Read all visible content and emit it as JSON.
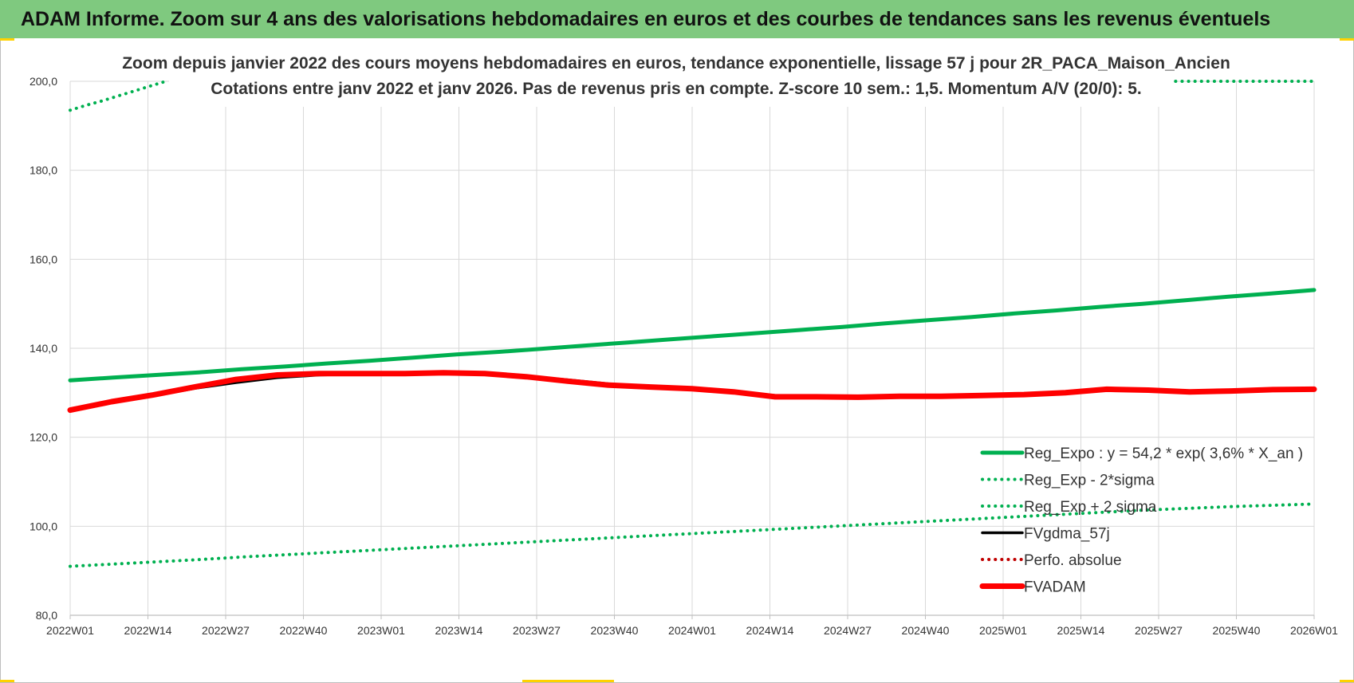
{
  "banner": {
    "title": "ADAM Informe. Zoom sur 4 ans des valorisations hebdomadaires en euros et des courbes de tendances sans les revenus éventuels"
  },
  "colors": {
    "banner_bg": "#7fc97f",
    "trend_green": "#00b050",
    "fvadam_red": "#ff0000",
    "fvgdma_black": "#000000",
    "grid": "#d9d9d9"
  },
  "chart_data": {
    "type": "line",
    "title": "Zoom depuis janvier 2022 des cours moyens hebdomadaires en euros, tendance exponentielle, lissage 57 j pour 2R_PACA_Maison_Ancien",
    "subtitle": "Cotations entre janv 2022 et janv 2026. Pas de revenus pris en compte. Z-score 10 sem.: 1,5. Momentum A/V (20/0): 5.",
    "xlabel": "",
    "ylabel": "",
    "ylim": [
      80,
      200
    ],
    "yticks": [
      "80,0",
      "100,0",
      "120,0",
      "140,0",
      "160,0",
      "180,0",
      "200,0"
    ],
    "xticks": [
      "2022W01",
      "2022W14",
      "2022W27",
      "2022W40",
      "2023W01",
      "2023W14",
      "2023W27",
      "2023W40",
      "2024W01",
      "2024W14",
      "2024W27",
      "2024W40",
      "2025W01",
      "2025W14",
      "2025W27",
      "2025W40",
      "2026W01"
    ],
    "grid": true,
    "legend_position": "bottom-right",
    "series": [
      {
        "name": "Reg_Expo : y = 54,2 * exp( 3,6% *  X_an )",
        "style": "solid",
        "color": "#00b050",
        "values": [
          132.8,
          133.4,
          134.0,
          134.6,
          135.3,
          135.9,
          136.6,
          137.2,
          137.9,
          138.6,
          139.2,
          139.9,
          140.6,
          141.3,
          142.0,
          142.7,
          143.4,
          144.1,
          144.8,
          145.6,
          146.3,
          147.0,
          147.8,
          148.5,
          149.3,
          150.0,
          150.8,
          151.6,
          152.3,
          153.1
        ]
      },
      {
        "name": "Reg_Exp - 2*sigma",
        "style": "dotted",
        "color": "#00b050",
        "values": [
          91.0,
          91.5,
          92.0,
          92.5,
          93.1,
          93.6,
          94.1,
          94.6,
          95.1,
          95.6,
          96.1,
          96.6,
          97.1,
          97.6,
          98.1,
          98.6,
          99.1,
          99.6,
          100.1,
          100.6,
          101.1,
          101.6,
          102.1,
          102.6,
          103.1,
          103.6,
          104.0,
          104.4,
          104.7,
          105.0
        ]
      },
      {
        "name": "Reg_Exp + 2 sigma",
        "style": "dotted",
        "color": "#00b050",
        "values": [
          193.5,
          194.6,
          195.6,
          196.7,
          197.8,
          198.9,
          200.0
        ]
      },
      {
        "name": "FVgdma_57j",
        "style": "solid-thin",
        "color": "#000000",
        "values": [
          126.0,
          127.8,
          129.3,
          131.0,
          132.3,
          133.4,
          134.0,
          134.2,
          134.3,
          134.4,
          134.2,
          133.7,
          132.9,
          132.0,
          131.5,
          130.9,
          130.2,
          129.4,
          129.1,
          129.0,
          129.1,
          129.3,
          129.5,
          129.7,
          130.1,
          130.5,
          130.6,
          130.3,
          130.4,
          130.6,
          130.8
        ]
      },
      {
        "name": "Perfo. absolue",
        "style": "dotted",
        "color": "#c00000",
        "values": []
      },
      {
        "name": "FVADAM",
        "style": "solid-thick",
        "color": "#ff0000",
        "values": [
          126.1,
          128.0,
          129.5,
          131.3,
          133.0,
          134.0,
          134.3,
          134.3,
          134.3,
          134.5,
          134.3,
          133.6,
          132.6,
          131.7,
          131.3,
          130.9,
          130.2,
          129.1,
          129.1,
          129.0,
          129.2,
          129.2,
          129.4,
          129.6,
          130.0,
          130.8,
          130.6,
          130.2,
          130.4,
          130.7,
          130.8
        ]
      }
    ]
  }
}
